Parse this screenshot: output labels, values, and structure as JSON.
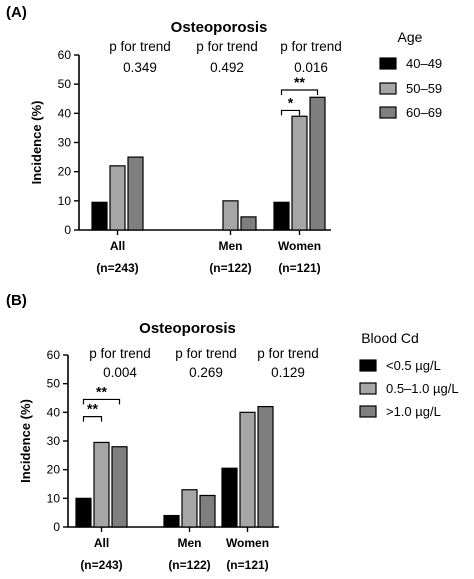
{
  "chart_data": [
    {
      "type": "bar",
      "panel_label": "(A)",
      "title": "Osteoporosis",
      "ylabel": "Incidence (%)",
      "ylim": [
        0,
        60
      ],
      "yticks": [
        "0",
        "10",
        "20",
        "30",
        "40",
        "50",
        "60"
      ],
      "categories": [
        "All",
        "Men",
        "Women"
      ],
      "category_n": [
        "(n=243)",
        "(n=122)",
        "(n=121)"
      ],
      "legend_title": "Age",
      "series": [
        {
          "name": "40–49",
          "color": "#000000",
          "values": [
            9.5,
            null,
            9.5
          ]
        },
        {
          "name": "50–59",
          "color": "#a6a6a6",
          "values": [
            22,
            10,
            39
          ]
        },
        {
          "name": "60–69",
          "color": "#7f7f7f",
          "values": [
            25,
            4.5,
            45.5
          ]
        }
      ],
      "p_trend_label": "p for trend",
      "p_trend": [
        "0.349",
        "0.492",
        "0.016"
      ],
      "significance": [
        {
          "category": 2,
          "from": 0,
          "to": 1,
          "level": 41,
          "stars": "*"
        },
        {
          "category": 2,
          "from": 0,
          "to": 2,
          "level": 48,
          "stars": "**"
        }
      ]
    },
    {
      "type": "bar",
      "panel_label": "(B)",
      "title": "Osteoporosis",
      "ylabel": "Incidence (%)",
      "ylim": [
        0,
        60
      ],
      "yticks": [
        "0",
        "10",
        "20",
        "30",
        "40",
        "50",
        "60"
      ],
      "categories": [
        "All",
        "Men",
        "Women"
      ],
      "category_n": [
        "(n=243)",
        "(n=122)",
        "(n=121)"
      ],
      "legend_title": "Blood  Cd",
      "series": [
        {
          "name": "<0.5 µg/L",
          "color": "#000000",
          "values": [
            10,
            4,
            20.5
          ]
        },
        {
          "name": "0.5–1.0 µg/L",
          "color": "#a6a6a6",
          "values": [
            29.5,
            13,
            40
          ]
        },
        {
          "name": ">1.0 µg/L",
          "color": "#7f7f7f",
          "values": [
            28,
            11,
            42
          ]
        }
      ],
      "p_trend_label": "p for trend",
      "p_trend": [
        "0.004",
        "0.269",
        "0.129"
      ],
      "significance": [
        {
          "category": 0,
          "from": 0,
          "to": 1,
          "level": 38.5,
          "stars": "**"
        },
        {
          "category": 0,
          "from": 0,
          "to": 2,
          "level": 44.5,
          "stars": "**"
        }
      ]
    }
  ]
}
